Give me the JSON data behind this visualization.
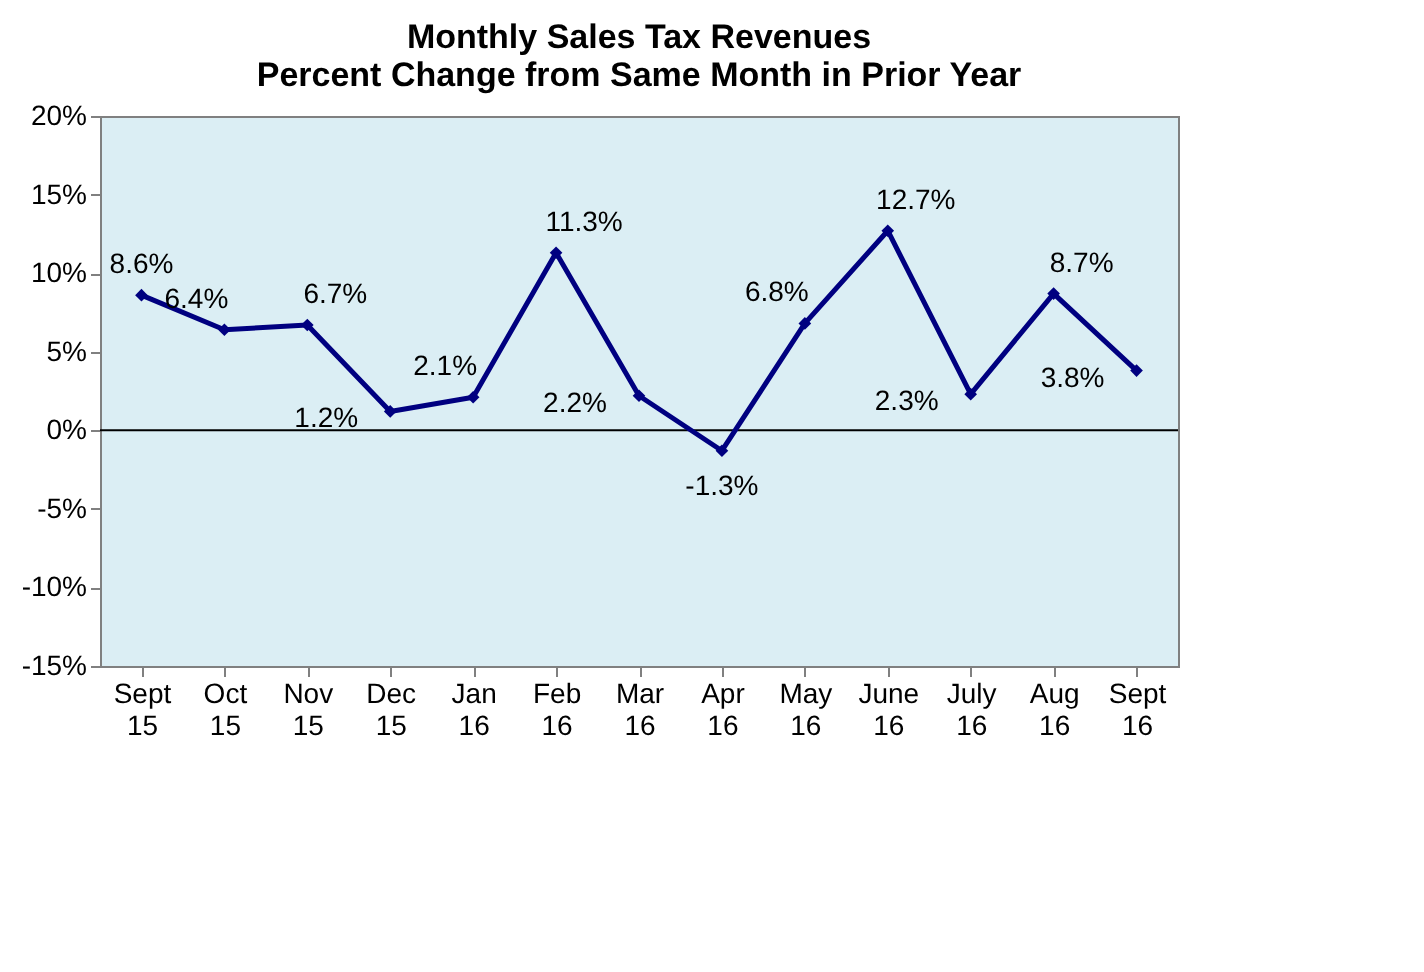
{
  "chart_data": {
    "type": "line",
    "title": [
      "Monthly Sales Tax Revenues",
      "Percent Change from Same Month in Prior Year"
    ],
    "categories": [
      "Sept 15",
      "Oct 15",
      "Nov 15",
      "Dec 15",
      "Jan 16",
      "Feb 16",
      "Mar 16",
      "Apr 16",
      "May 16",
      "June 16",
      "July 16",
      "Aug 16",
      "Sept 16"
    ],
    "series": [
      {
        "color": "#000080",
        "values": [
          8.6,
          6.4,
          6.7,
          1.2,
          2.1,
          11.3,
          2.2,
          -1.3,
          6.8,
          12.7,
          2.3,
          8.7,
          3.8
        ],
        "value_labels": [
          "8.6%",
          "6.4%",
          "6.7%",
          "1.2%",
          "2.1%",
          "11.3%",
          "2.2%",
          "-1.3%",
          "6.8%",
          "12.7%",
          "2.3%",
          "8.7%",
          "3.8%"
        ]
      }
    ],
    "ylim": [
      -15,
      20
    ],
    "yticks": [
      {
        "value": -15,
        "label": "-15%"
      },
      {
        "value": -10,
        "label": "-10%"
      },
      {
        "value": -5,
        "label": "-5%"
      },
      {
        "value": 0,
        "label": "0%"
      },
      {
        "value": 5,
        "label": "5%"
      },
      {
        "value": 10,
        "label": "10%"
      },
      {
        "value": 15,
        "label": "15%"
      },
      {
        "value": 20,
        "label": "20%"
      }
    ],
    "ref_lines": [
      {
        "axis": "y",
        "value": 0,
        "color": "#000000"
      }
    ],
    "marker": "diamond",
    "line_style": "solid",
    "grid": false
  }
}
